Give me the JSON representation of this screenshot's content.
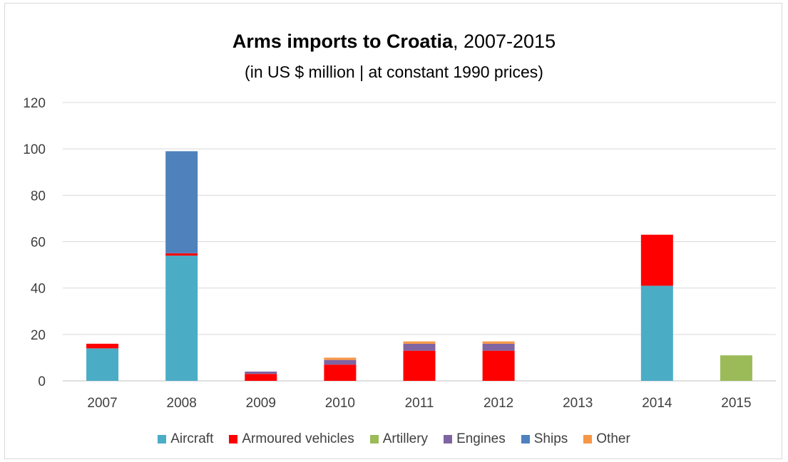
{
  "chart_data": {
    "type": "bar",
    "stacked": true,
    "title_bold": "Arms imports to Croatia",
    "title_rest": ", 2007-2015",
    "subtitle": "(in US $ million | at constant 1990 prices)",
    "categories": [
      "2007",
      "2008",
      "2009",
      "2010",
      "2011",
      "2012",
      "2013",
      "2014",
      "2015"
    ],
    "ylim": [
      0,
      120
    ],
    "yticks": [
      0,
      20,
      40,
      60,
      80,
      100,
      120
    ],
    "grid": true,
    "legend_position": "bottom",
    "series": [
      {
        "name": "Aircraft",
        "color": "#4bacc6",
        "values": [
          14,
          54,
          0,
          0,
          0,
          0,
          0,
          41,
          0
        ]
      },
      {
        "name": "Armoured vehicles",
        "color": "#ff0000",
        "values": [
          2,
          1,
          3,
          7,
          13,
          13,
          0,
          22,
          0
        ]
      },
      {
        "name": "Artillery",
        "color": "#9bbb59",
        "values": [
          0,
          0,
          0,
          0,
          0,
          0,
          0,
          0,
          11
        ]
      },
      {
        "name": "Engines",
        "color": "#8064a2",
        "values": [
          0,
          0,
          1,
          2,
          3,
          3,
          0,
          0,
          0
        ]
      },
      {
        "name": "Ships",
        "color": "#4f81bd",
        "values": [
          0,
          44,
          0,
          0,
          0,
          0,
          0,
          0,
          0
        ]
      },
      {
        "name": "Other",
        "color": "#f79646",
        "values": [
          0,
          0,
          0,
          1,
          1,
          1,
          0,
          0,
          0
        ]
      }
    ]
  }
}
